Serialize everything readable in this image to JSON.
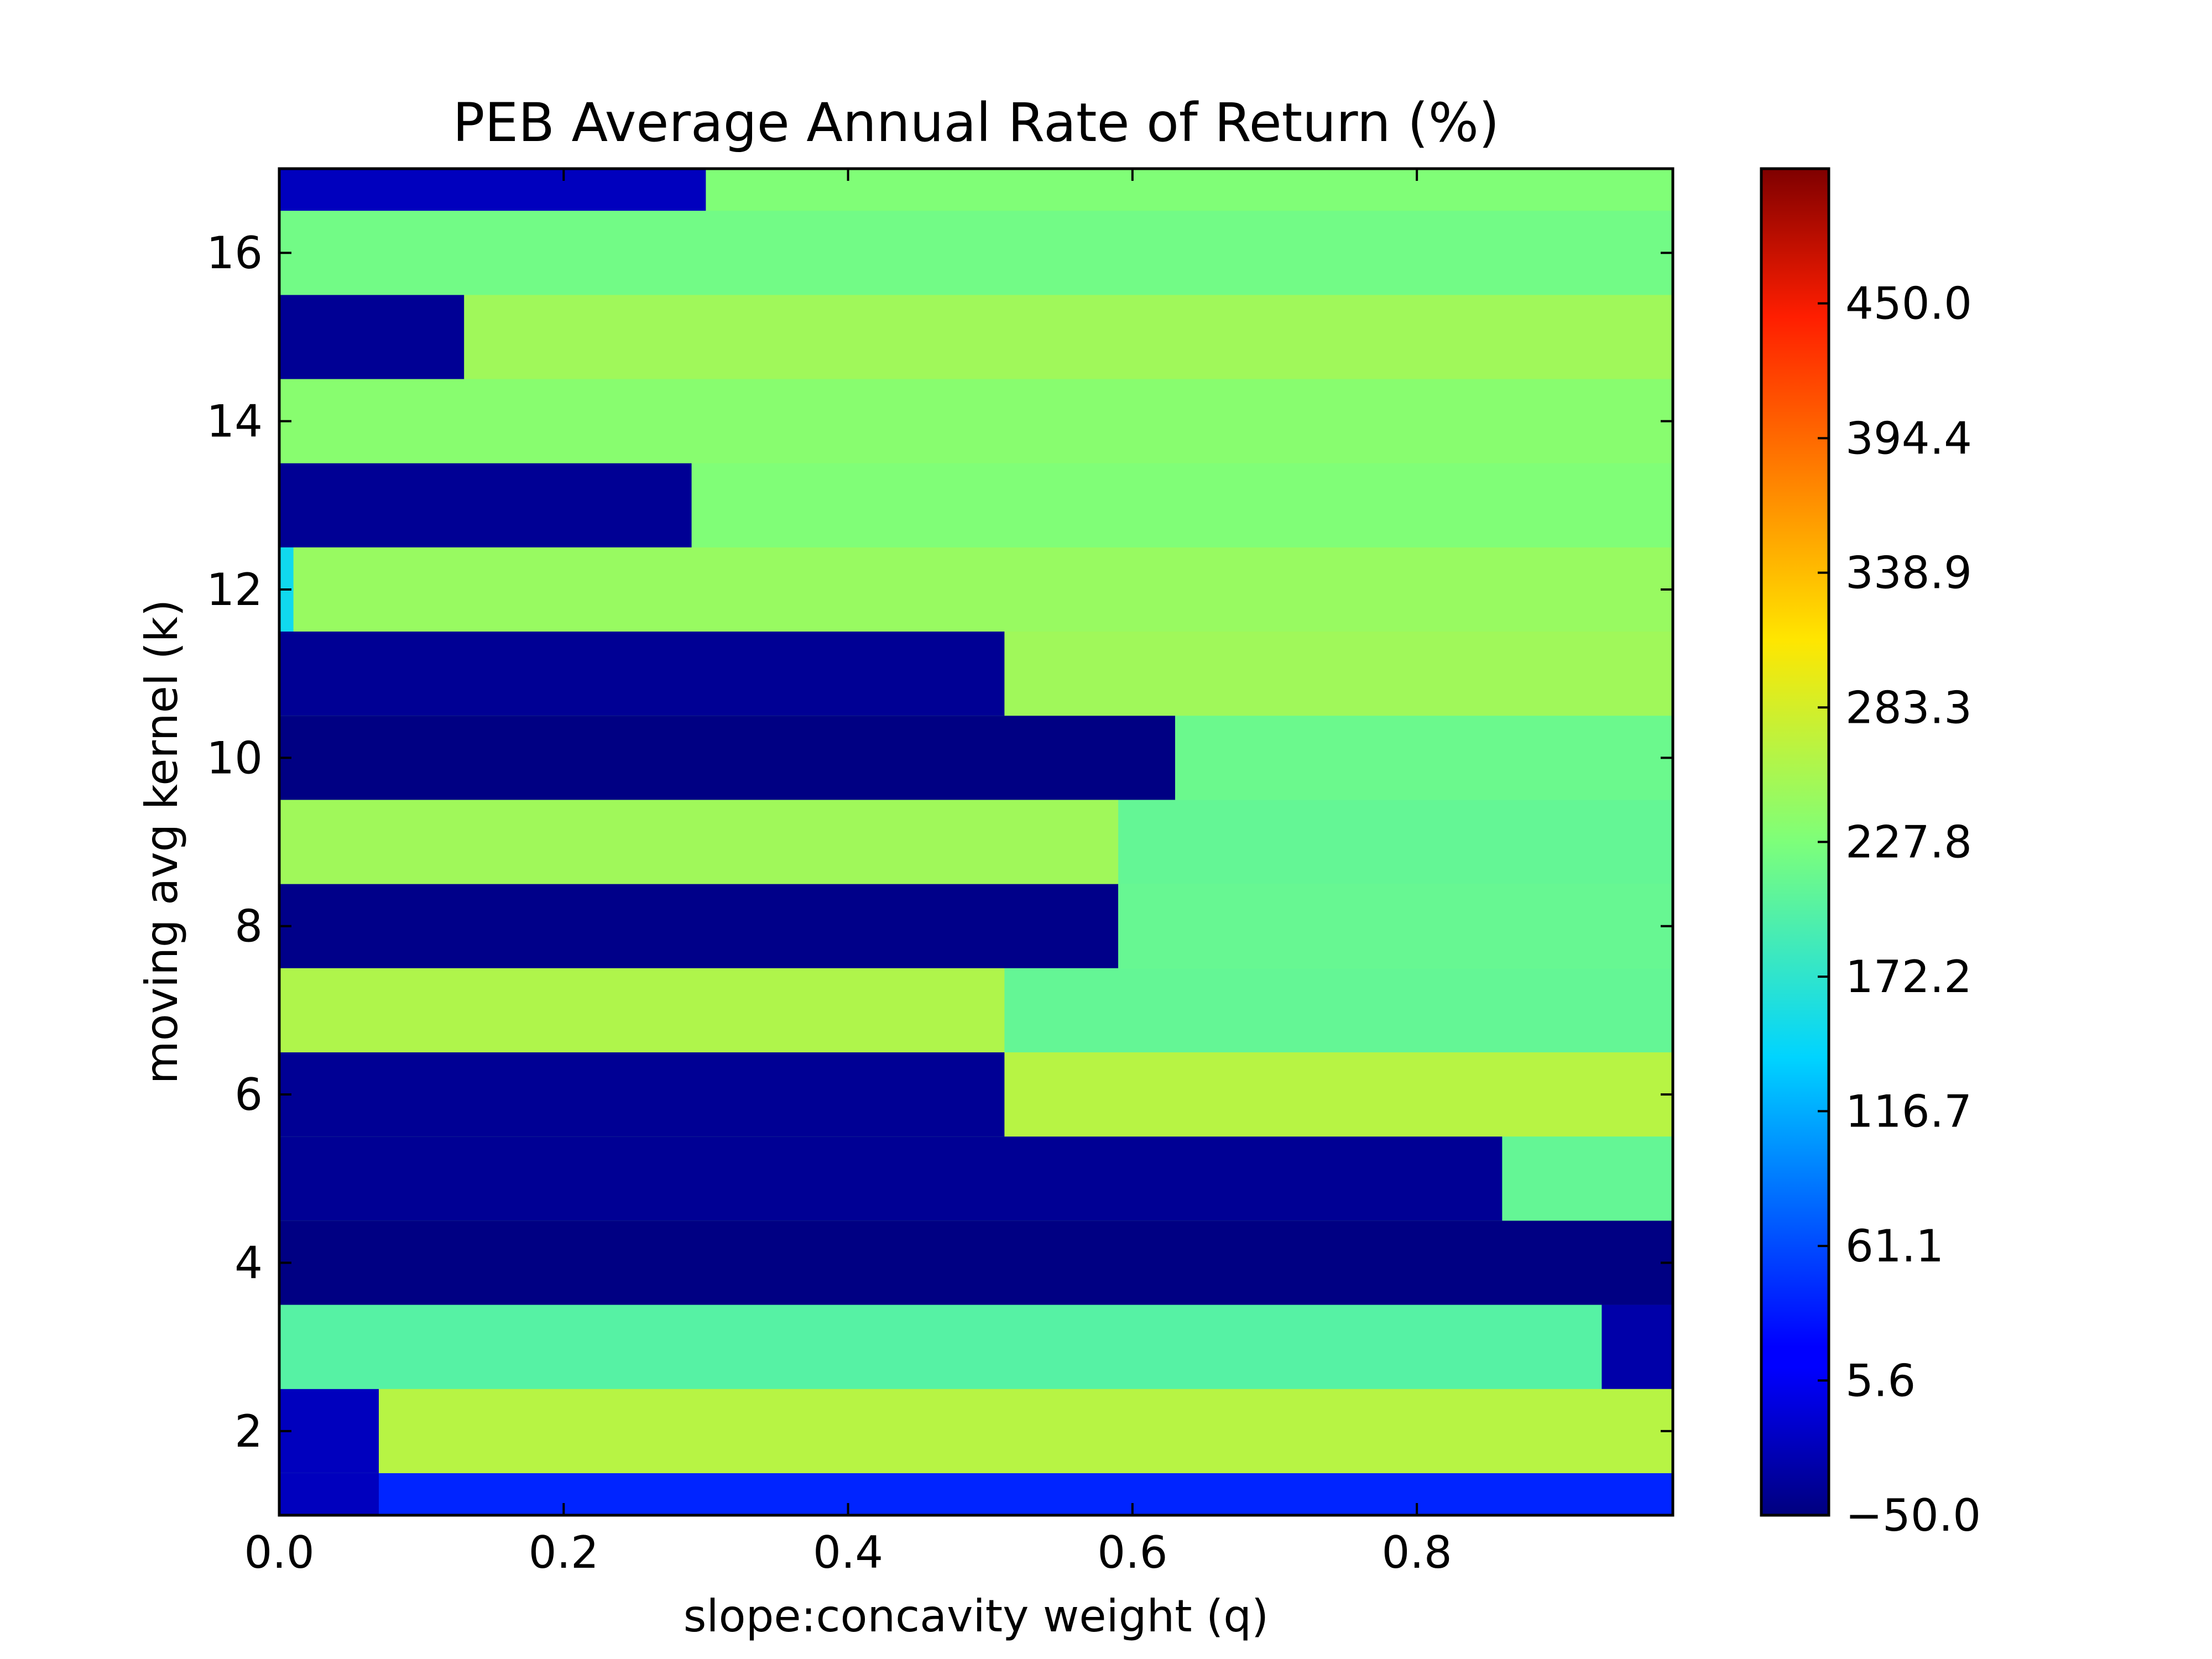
{
  "chart_data": {
    "type": "heatmap",
    "title": "PEB Average Annual Rate of Return (%)",
    "xlabel": "slope:concavity weight (q)",
    "ylabel": "moving avg kernel (k)",
    "xlim": [
      0.0,
      0.98
    ],
    "ylim": [
      1,
      17
    ],
    "x_ticks": [
      0.0,
      0.2,
      0.4,
      0.6,
      0.8
    ],
    "x_tick_labels": [
      "0.0",
      "0.2",
      "0.4",
      "0.6",
      "0.8"
    ],
    "y_ticks": [
      2,
      4,
      6,
      8,
      10,
      12,
      14,
      16
    ],
    "y_tick_labels": [
      "2",
      "4",
      "6",
      "8",
      "10",
      "12",
      "14",
      "16"
    ],
    "colorbar": {
      "range": [
        -50.0,
        505.6
      ],
      "ticks": [
        -50.0,
        5.6,
        61.1,
        116.7,
        172.2,
        227.8,
        283.3,
        338.9,
        394.4,
        450.0
      ],
      "tick_labels": [
        "−50.0",
        "5.6",
        "61.1",
        "116.7",
        "172.2",
        "227.8",
        "283.3",
        "338.9",
        "394.4",
        "450.0"
      ],
      "colormap": "jet"
    },
    "bands": [
      {
        "k": 1,
        "low_q_max": 0.07,
        "low_value": -20,
        "high_value": 40
      },
      {
        "k": 2,
        "low_q_max": 0.07,
        "low_value": -20,
        "high_value": 265
      },
      {
        "k": 3,
        "low_q_max": 0.93,
        "low_value": 200,
        "high_value": -30
      },
      {
        "k": 4,
        "low_q_max": 1.0,
        "low_value": -48,
        "high_value": -48
      },
      {
        "k": 5,
        "low_q_max": 0.86,
        "low_value": -40,
        "high_value": 210
      },
      {
        "k": 6,
        "low_q_max": 0.51,
        "low_value": -40,
        "high_value": 265
      },
      {
        "k": 7,
        "low_q_max": 0.51,
        "low_value": 260,
        "high_value": 210
      },
      {
        "k": 8,
        "low_q_max": 0.59,
        "low_value": -45,
        "high_value": 212
      },
      {
        "k": 9,
        "low_q_max": 0.59,
        "low_value": 250,
        "high_value": 210
      },
      {
        "k": 10,
        "low_q_max": 0.63,
        "low_value": -48,
        "high_value": 215
      },
      {
        "k": 11,
        "low_q_max": 0.51,
        "low_value": -40,
        "high_value": 250
      },
      {
        "k": 12,
        "low_q_max": 0.01,
        "low_value": 150,
        "high_value": 245
      },
      {
        "k": 13,
        "low_q_max": 0.29,
        "low_value": -40,
        "high_value": 230
      },
      {
        "k": 14,
        "low_q_max": 0.0,
        "low_value": 230,
        "high_value": 235
      },
      {
        "k": 15,
        "low_q_max": 0.13,
        "low_value": -40,
        "high_value": 250
      },
      {
        "k": 16,
        "low_q_max": 0.0,
        "low_value": 225,
        "high_value": 220
      },
      {
        "k": 17,
        "low_q_max": 0.3,
        "low_value": -20,
        "high_value": 230
      }
    ],
    "grid": false
  }
}
